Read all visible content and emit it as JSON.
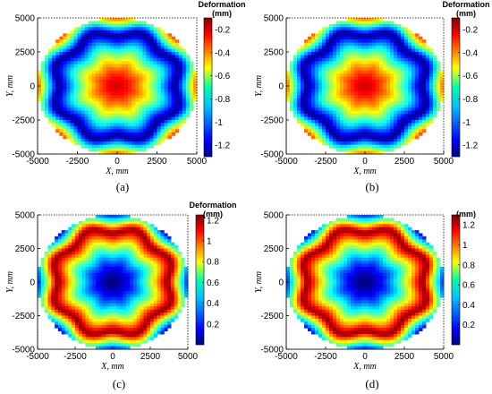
{
  "chart_data": [
    {
      "type": "heatmap",
      "panel_label": "(a)",
      "colorbar_title": [
        "Deformation",
        "(mm)"
      ],
      "colorbar_ticks": [
        "-0.2",
        "-0.4",
        "-0.6",
        "-0.8",
        "-1",
        "-1.2"
      ],
      "colorbar_tick_values": [
        -0.2,
        -0.4,
        -0.6,
        -0.8,
        -1.0,
        -1.2
      ],
      "colorbar_range": [
        -1.3,
        -0.1
      ],
      "xlabel": "X, mm",
      "ylabel": "Y, mm",
      "x_ticks": [
        "-5000",
        "-2500",
        "0",
        "2500",
        "5000"
      ],
      "y_ticks": [
        "5000",
        "2500",
        "0",
        "-2500",
        "-5000"
      ],
      "xlim": [
        -5000,
        5000
      ],
      "ylim": [
        -5000,
        5000
      ],
      "center_value": -0.2,
      "edge_value": -1.3,
      "colormap": "jet",
      "pattern": "bowl - maximum magnitude toward rim with octagonal notched rim band"
    },
    {
      "type": "heatmap",
      "panel_label": "(b)",
      "colorbar_title": [
        "Deformation",
        "(mm)"
      ],
      "colorbar_ticks": [
        "-0.2",
        "-0.4",
        "-0.6",
        "-0.8",
        "-1",
        "-1.2"
      ],
      "colorbar_tick_values": [
        -0.2,
        -0.4,
        -0.6,
        -0.8,
        -1.0,
        -1.2
      ],
      "colorbar_range": [
        -1.3,
        -0.1
      ],
      "xlabel": "X, mm",
      "ylabel": "Y, mm",
      "x_ticks": [
        "-5000",
        "-2500",
        "0",
        "2500",
        "5000"
      ],
      "y_ticks": [
        "5000",
        "2500",
        "0",
        "-2500",
        "-5000"
      ],
      "xlim": [
        -5000,
        5000
      ],
      "ylim": [
        -5000,
        5000
      ],
      "center_value": -0.2,
      "edge_value": -1.3,
      "colormap": "jet",
      "pattern": "bowl - maximum magnitude toward rim with octagonal notched rim band"
    },
    {
      "type": "heatmap",
      "panel_label": "(c)",
      "colorbar_title": [
        "Deformation",
        "(mm)"
      ],
      "colorbar_ticks": [
        "1.2",
        "1",
        "0.8",
        "0.6",
        "0.4",
        "0.2"
      ],
      "colorbar_tick_values": [
        1.2,
        1.0,
        0.8,
        0.6,
        0.4,
        0.2
      ],
      "colorbar_range": [
        0.0,
        1.25
      ],
      "xlabel": "X, mm",
      "ylabel": "Y, mm",
      "x_ticks": [
        "-5000",
        "-2500",
        "0",
        "2500",
        "5000"
      ],
      "y_ticks": [
        "5000",
        "2500",
        "0",
        "-2500",
        "-5000"
      ],
      "xlim": [
        -5000,
        5000
      ],
      "ylim": [
        -5000,
        5000
      ],
      "center_value": 0.0,
      "edge_value": 1.25,
      "colormap": "jet",
      "pattern": "inverted bowl - minimum at center, maximum in octagonal notched rim band"
    },
    {
      "type": "heatmap",
      "panel_label": "(d)",
      "colorbar_title": [
        "",
        "(mm)"
      ],
      "colorbar_ticks": [
        "1.2",
        "1",
        "0.8",
        "0.6",
        "0.4",
        "0.2"
      ],
      "colorbar_tick_values": [
        1.2,
        1.0,
        0.8,
        0.6,
        0.4,
        0.2
      ],
      "colorbar_range": [
        0.0,
        1.3
      ],
      "xlabel": "X, mm",
      "ylabel": "Y, mm",
      "x_ticks": [
        "-5000",
        "-2500",
        "0",
        "2500",
        "5000"
      ],
      "y_ticks": [
        "5000",
        "2500",
        "0",
        "-2500",
        "-5000"
      ],
      "xlim": [
        -5000,
        5000
      ],
      "ylim": [
        -5000,
        5000
      ],
      "center_value": 0.0,
      "edge_value": 1.3,
      "colormap": "jet",
      "pattern": "inverted bowl - minimum at center, maximum in octagonal notched rim band"
    }
  ]
}
